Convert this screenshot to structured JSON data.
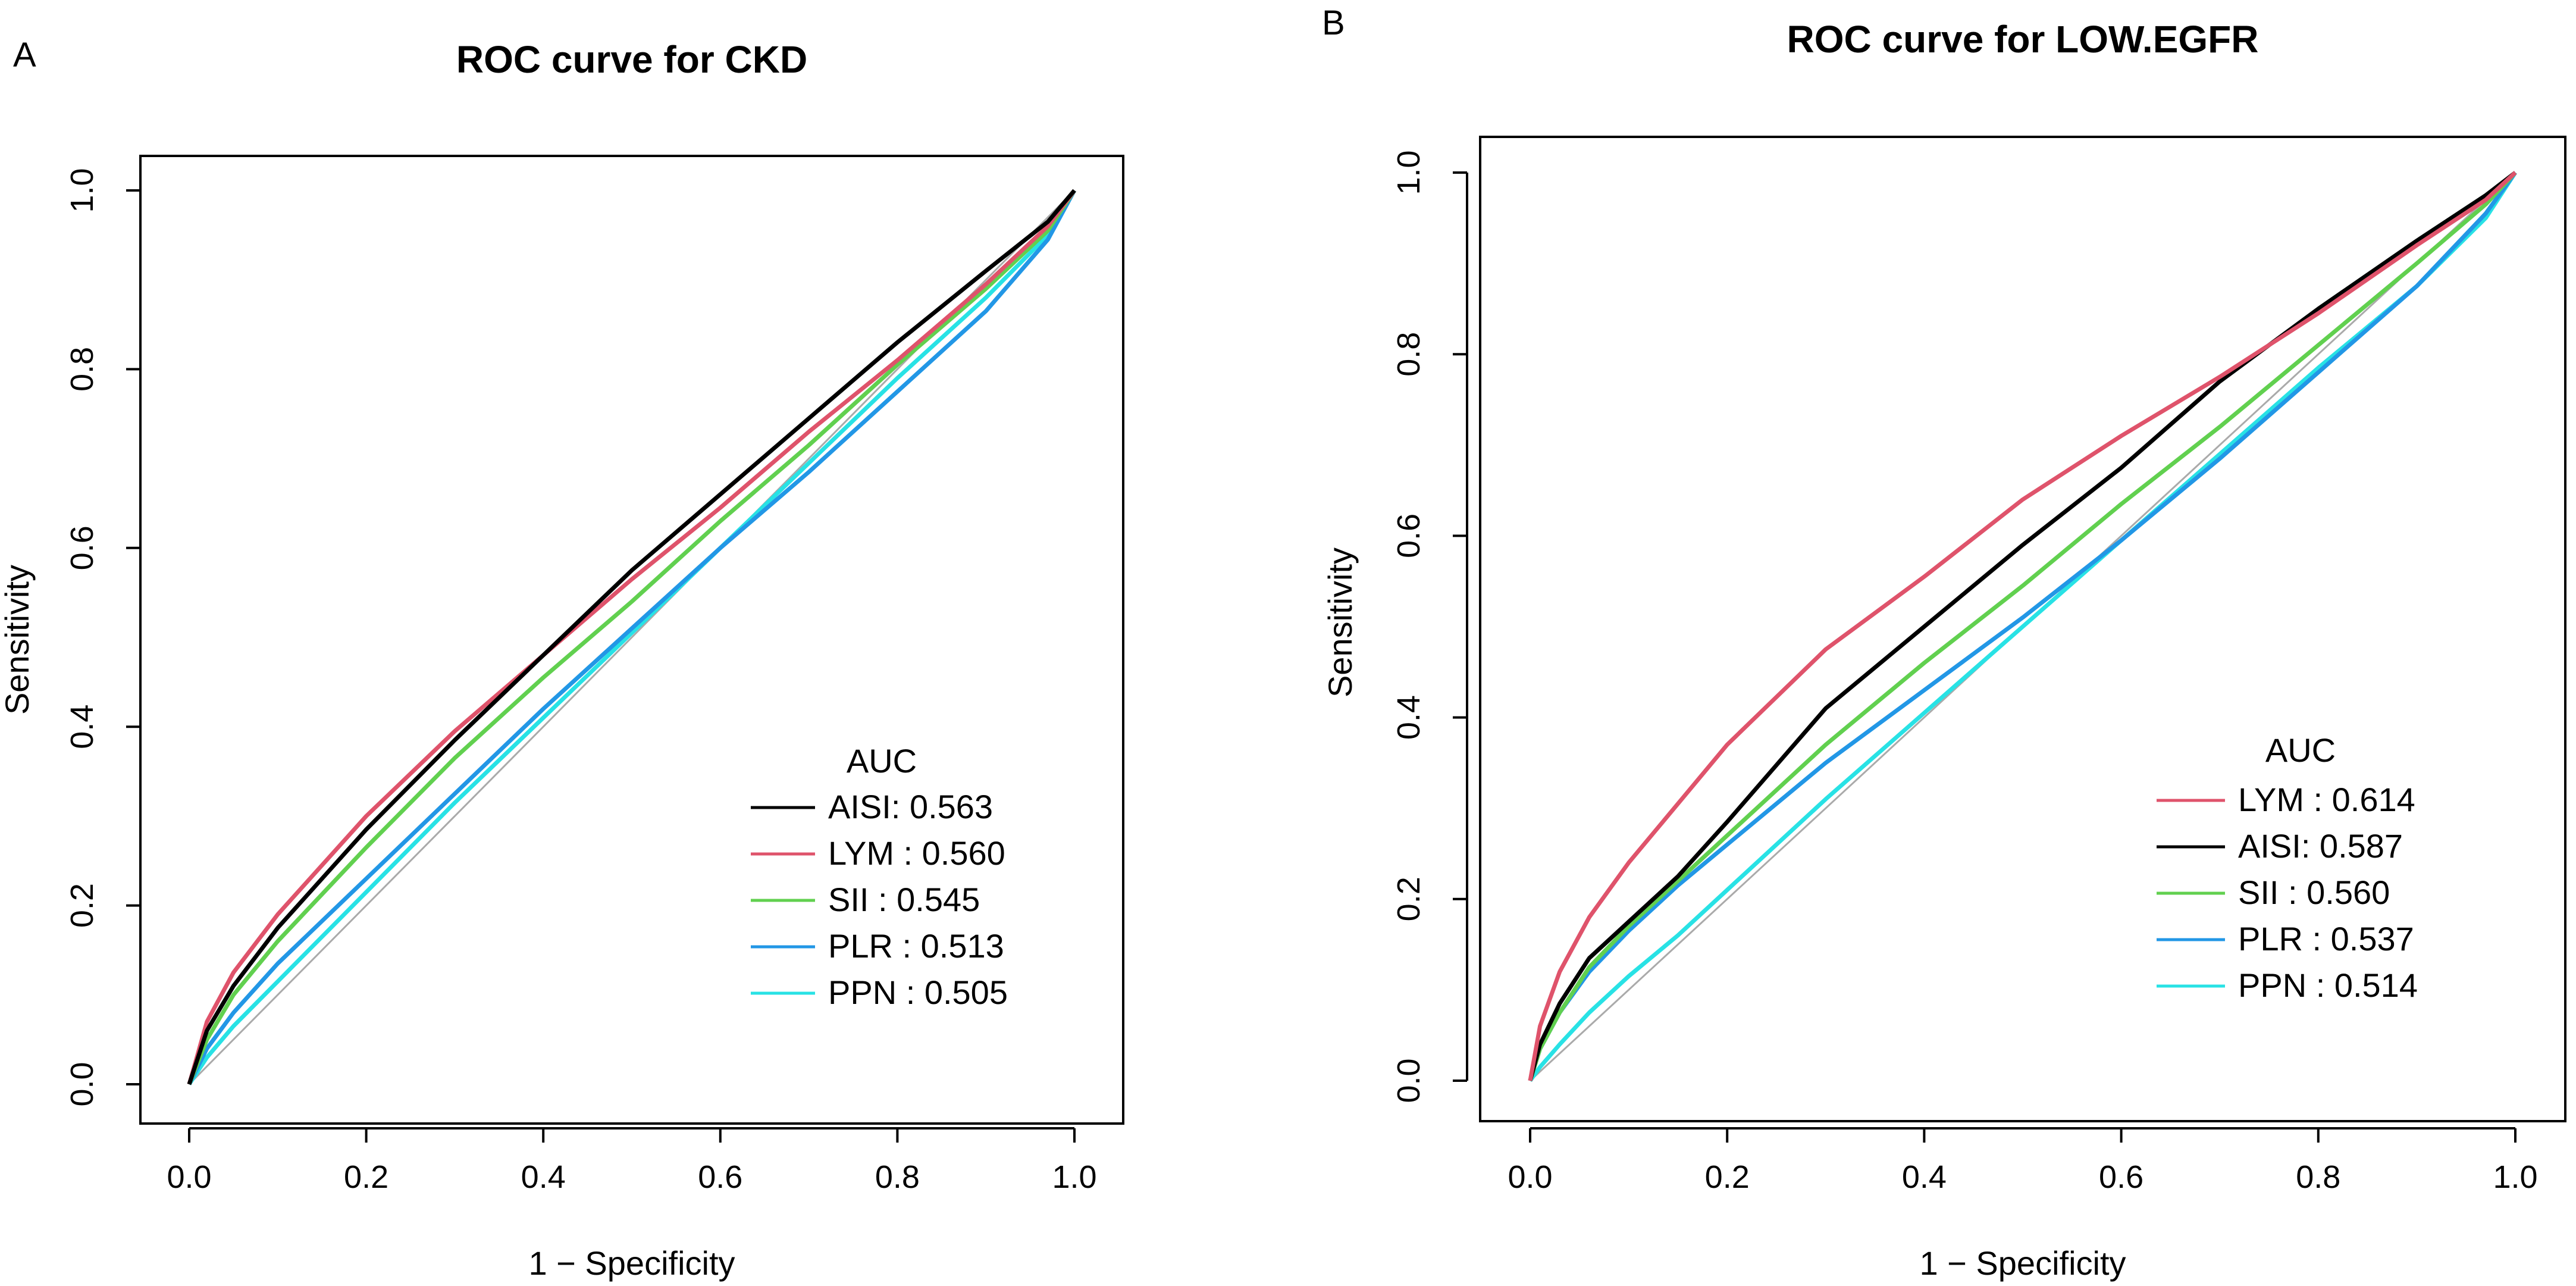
{
  "chart_data": [
    {
      "type": "line",
      "panel": "A",
      "title": "ROC curve for CKD",
      "xlabel": "1 − Specificity",
      "ylabel": "Sensitivity",
      "xlim": [
        0,
        1
      ],
      "ylim": [
        0,
        1
      ],
      "xticks": [
        "0.0",
        "0.2",
        "0.4",
        "0.6",
        "0.8",
        "1.0"
      ],
      "yticks": [
        "0.0",
        "0.2",
        "0.4",
        "0.6",
        "0.8",
        "1.0"
      ],
      "legend_title": "AUC",
      "legend_position": "bottom-right",
      "reference_line": {
        "x": [
          0,
          1
        ],
        "y": [
          0,
          1
        ],
        "color": "#aaaaaa"
      },
      "series": [
        {
          "name": "AISI",
          "label": "AISI: 0.563",
          "auc": 0.563,
          "color": "#000000",
          "x": [
            0,
            0.02,
            0.05,
            0.1,
            0.2,
            0.3,
            0.4,
            0.5,
            0.6,
            0.7,
            0.8,
            0.9,
            0.97,
            1.0
          ],
          "y": [
            0,
            0.06,
            0.11,
            0.175,
            0.285,
            0.385,
            0.48,
            0.575,
            0.66,
            0.745,
            0.83,
            0.91,
            0.965,
            1.0
          ]
        },
        {
          "name": "LYM",
          "label": "LYM : 0.560",
          "auc": 0.56,
          "color": "#df536b",
          "x": [
            0,
            0.02,
            0.05,
            0.1,
            0.2,
            0.3,
            0.4,
            0.5,
            0.6,
            0.7,
            0.8,
            0.9,
            0.97,
            1.0
          ],
          "y": [
            0,
            0.07,
            0.125,
            0.19,
            0.3,
            0.395,
            0.48,
            0.565,
            0.645,
            0.73,
            0.81,
            0.895,
            0.96,
            1.0
          ]
        },
        {
          "name": "SII",
          "label": "SII : 0.545",
          "auc": 0.545,
          "color": "#61d04f",
          "x": [
            0,
            0.02,
            0.05,
            0.1,
            0.2,
            0.3,
            0.4,
            0.5,
            0.6,
            0.7,
            0.8,
            0.9,
            0.97,
            1.0
          ],
          "y": [
            0,
            0.05,
            0.1,
            0.16,
            0.265,
            0.365,
            0.455,
            0.54,
            0.63,
            0.715,
            0.805,
            0.89,
            0.955,
            1.0
          ]
        },
        {
          "name": "PLR",
          "label": "PLR : 0.513",
          "auc": 0.513,
          "color": "#2297e6",
          "x": [
            0,
            0.02,
            0.05,
            0.1,
            0.2,
            0.3,
            0.4,
            0.5,
            0.6,
            0.7,
            0.8,
            0.9,
            0.97,
            1.0
          ],
          "y": [
            0,
            0.04,
            0.08,
            0.135,
            0.23,
            0.325,
            0.42,
            0.51,
            0.6,
            0.685,
            0.775,
            0.865,
            0.945,
            1.0
          ]
        },
        {
          "name": "PPN",
          "label": "PPN : 0.505",
          "auc": 0.505,
          "color": "#28e2e5",
          "x": [
            0,
            0.02,
            0.05,
            0.1,
            0.2,
            0.3,
            0.4,
            0.5,
            0.6,
            0.7,
            0.8,
            0.9,
            0.97,
            1.0
          ],
          "y": [
            0,
            0.03,
            0.065,
            0.115,
            0.215,
            0.315,
            0.41,
            0.505,
            0.6,
            0.695,
            0.79,
            0.88,
            0.95,
            1.0
          ]
        }
      ]
    },
    {
      "type": "line",
      "panel": "B",
      "title": "ROC curve for LOW.EGFR",
      "xlabel": "1 − Specificity",
      "ylabel": "Sensitivity",
      "xlim": [
        0,
        1
      ],
      "ylim": [
        0,
        1
      ],
      "xticks": [
        "0.0",
        "0.2",
        "0.4",
        "0.6",
        "0.8",
        "1.0"
      ],
      "yticks": [
        "0.0",
        "0.2",
        "0.4",
        "0.6",
        "0.8",
        "1.0"
      ],
      "legend_title": "AUC",
      "legend_position": "bottom-right",
      "reference_line": {
        "x": [
          0,
          1
        ],
        "y": [
          0,
          1
        ],
        "color": "#aaaaaa"
      },
      "series": [
        {
          "name": "LYM",
          "label": "LYM : 0.614",
          "auc": 0.614,
          "color": "#df536b",
          "x": [
            0,
            0.01,
            0.03,
            0.06,
            0.1,
            0.15,
            0.2,
            0.3,
            0.4,
            0.5,
            0.6,
            0.7,
            0.8,
            0.9,
            0.97,
            1.0
          ],
          "y": [
            0,
            0.06,
            0.12,
            0.18,
            0.24,
            0.305,
            0.37,
            0.475,
            0.555,
            0.64,
            0.71,
            0.775,
            0.845,
            0.92,
            0.97,
            1.0
          ]
        },
        {
          "name": "AISI",
          "label": "AISI: 0.587",
          "auc": 0.587,
          "color": "#000000",
          "x": [
            0,
            0.01,
            0.03,
            0.06,
            0.1,
            0.15,
            0.2,
            0.3,
            0.4,
            0.5,
            0.6,
            0.7,
            0.8,
            0.9,
            0.97,
            1.0
          ],
          "y": [
            0,
            0.04,
            0.085,
            0.135,
            0.175,
            0.225,
            0.285,
            0.41,
            0.5,
            0.59,
            0.675,
            0.77,
            0.85,
            0.925,
            0.975,
            1.0
          ]
        },
        {
          "name": "SII",
          "label": "SII : 0.560",
          "auc": 0.56,
          "color": "#61d04f",
          "x": [
            0,
            0.01,
            0.03,
            0.06,
            0.1,
            0.15,
            0.2,
            0.3,
            0.4,
            0.5,
            0.6,
            0.7,
            0.8,
            0.9,
            0.97,
            1.0
          ],
          "y": [
            0,
            0.035,
            0.075,
            0.125,
            0.17,
            0.22,
            0.27,
            0.37,
            0.46,
            0.545,
            0.635,
            0.72,
            0.81,
            0.9,
            0.965,
            1.0
          ]
        },
        {
          "name": "PLR",
          "label": "PLR : 0.537",
          "auc": 0.537,
          "color": "#2297e6",
          "x": [
            0,
            0.01,
            0.03,
            0.06,
            0.1,
            0.15,
            0.2,
            0.3,
            0.4,
            0.5,
            0.6,
            0.7,
            0.8,
            0.9,
            0.97,
            1.0
          ],
          "y": [
            0,
            0.035,
            0.075,
            0.12,
            0.165,
            0.215,
            0.26,
            0.35,
            0.43,
            0.51,
            0.595,
            0.685,
            0.78,
            0.875,
            0.955,
            1.0
          ]
        },
        {
          "name": "PPN",
          "label": "PPN : 0.514",
          "auc": 0.514,
          "color": "#28e2e5",
          "x": [
            0,
            0.01,
            0.03,
            0.06,
            0.1,
            0.15,
            0.2,
            0.3,
            0.4,
            0.5,
            0.6,
            0.7,
            0.8,
            0.9,
            0.97,
            1.0
          ],
          "y": [
            0,
            0.015,
            0.04,
            0.075,
            0.115,
            0.16,
            0.21,
            0.31,
            0.405,
            0.5,
            0.595,
            0.69,
            0.785,
            0.875,
            0.95,
            1.0
          ]
        }
      ]
    }
  ]
}
